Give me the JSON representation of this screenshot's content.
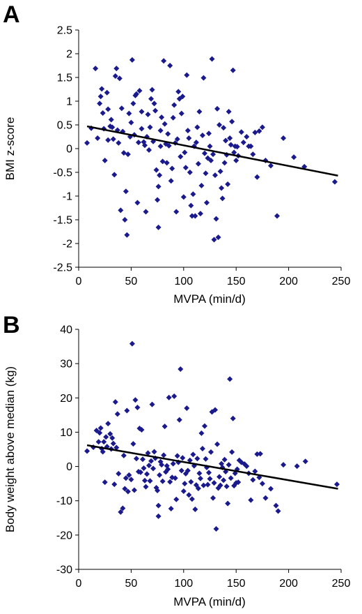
{
  "figure": {
    "colors": {
      "marker": "#1a1a8c",
      "trendline": "#000000",
      "axis": "#000000"
    }
  },
  "chart_data": [
    {
      "type": "scatter",
      "panel_label": "A",
      "xlabel": "MVPA (min/d)",
      "ylabel": "BMI z-score",
      "xlim": [
        0,
        250
      ],
      "ylim": [
        -2.5,
        2.5
      ],
      "xticks": [
        "0",
        "50",
        "100",
        "150",
        "200",
        "250"
      ],
      "yticks": [
        "2.5",
        "2",
        "1.5",
        "1",
        "0.5",
        "0",
        "-0.5",
        "-1",
        "-1.5",
        "-2",
        "-2.5"
      ],
      "marker": "diamond",
      "trendline": {
        "x": [
          8,
          247
        ],
        "y": [
          0.47,
          -0.57
        ]
      },
      "points": [
        [
          8,
          0.12
        ],
        [
          12,
          0.43
        ],
        [
          16,
          1.69
        ],
        [
          18,
          0.22
        ],
        [
          20,
          0.95
        ],
        [
          21,
          1.1
        ],
        [
          22,
          1.26
        ],
        [
          23,
          0.75
        ],
        [
          24,
          0.42
        ],
        [
          25,
          -0.25
        ],
        [
          27,
          1.18
        ],
        [
          28,
          0.83
        ],
        [
          28,
          0.18
        ],
        [
          30,
          0.47
        ],
        [
          31,
          0.61
        ],
        [
          32,
          0.45
        ],
        [
          33,
          0.2
        ],
        [
          34,
          -0.55
        ],
        [
          35,
          1.53
        ],
        [
          36,
          1.69
        ],
        [
          37,
          0.39
        ],
        [
          38,
          0.12
        ],
        [
          39,
          1.48
        ],
        [
          40,
          -1.3
        ],
        [
          41,
          0.85
        ],
        [
          42,
          0.36
        ],
        [
          43,
          -0.09
        ],
        [
          44,
          -1.5
        ],
        [
          45,
          -0.9
        ],
        [
          46,
          -1.82
        ],
        [
          47,
          -0.12
        ],
        [
          48,
          0.74
        ],
        [
          49,
          0.25
        ],
        [
          50,
          0.55
        ],
        [
          51,
          1.87
        ],
        [
          52,
          0.95
        ],
        [
          53,
          0.29
        ],
        [
          54,
          1.12
        ],
        [
          55,
          1.15
        ],
        [
          56,
          -1.14
        ],
        [
          57,
          0.13
        ],
        [
          58,
          1.22
        ],
        [
          60,
          0.78
        ],
        [
          60,
          0.42
        ],
        [
          62,
          0.14
        ],
        [
          63,
          0.07
        ],
        [
          64,
          -1.33
        ],
        [
          65,
          0.25
        ],
        [
          66,
          0.72
        ],
        [
          67,
          -0.03
        ],
        [
          68,
          0.45
        ],
        [
          69,
          1.05
        ],
        [
          70,
          1.24
        ],
        [
          71,
          0.15
        ],
        [
          72,
          0.95
        ],
        [
          73,
          0.8
        ],
        [
          74,
          -0.45
        ],
        [
          75,
          -1.08
        ],
        [
          76,
          -1.66
        ],
        [
          76,
          -0.8
        ],
        [
          77,
          -0.56
        ],
        [
          78,
          0.38
        ],
        [
          78,
          0.05
        ],
        [
          79,
          0.66
        ],
        [
          80,
          -0.27
        ],
        [
          81,
          1.85
        ],
        [
          82,
          0.52
        ],
        [
          83,
          0.1
        ],
        [
          84,
          -0.3
        ],
        [
          85,
          0.31
        ],
        [
          86,
          0.06
        ],
        [
          87,
          1.75
        ],
        [
          88,
          -0.68
        ],
        [
          89,
          -0.42
        ],
        [
          90,
          0.65
        ],
        [
          91,
          0.92
        ],
        [
          92,
          0.12
        ],
        [
          93,
          -1.33
        ],
        [
          94,
          0.2
        ],
        [
          95,
          1.2
        ],
        [
          96,
          1.05
        ],
        [
          97,
          -0.17
        ],
        [
          98,
          0.74
        ],
        [
          99,
          1.1
        ],
        [
          100,
          -1.02
        ],
        [
          101,
          -0.08
        ],
        [
          102,
          -0.4
        ],
        [
          103,
          1.55
        ],
        [
          104,
          0.38
        ],
        [
          105,
          0.22
        ],
        [
          106,
          -0.5
        ],
        [
          107,
          -1.2
        ],
        [
          108,
          -1.42
        ],
        [
          109,
          -0.96
        ],
        [
          110,
          0.05
        ],
        [
          111,
          -1.42
        ],
        [
          112,
          0.13
        ],
        [
          113,
          0.45
        ],
        [
          114,
          -0.32
        ],
        [
          115,
          0.78
        ],
        [
          116,
          -1.37
        ],
        [
          117,
          -0.78
        ],
        [
          118,
          0.28
        ],
        [
          119,
          1.49
        ],
        [
          120,
          -0.1
        ],
        [
          121,
          -0.52
        ],
        [
          122,
          -1.14
        ],
        [
          123,
          -0.2
        ],
        [
          124,
          0.32
        ],
        [
          125,
          0.05
        ],
        [
          126,
          -0.25
        ],
        [
          127,
          1.89
        ],
        [
          128,
          -0.12
        ],
        [
          129,
          -1.92
        ],
        [
          130,
          -0.56
        ],
        [
          131,
          -1.48
        ],
        [
          132,
          0.84
        ],
        [
          133,
          -1.87
        ],
        [
          134,
          0.5
        ],
        [
          135,
          -0.48
        ],
        [
          136,
          -0.83
        ],
        [
          137,
          -1.05
        ],
        [
          138,
          0.44
        ],
        [
          139,
          -0.3
        ],
        [
          140,
          0.17
        ],
        [
          141,
          -0.13
        ],
        [
          142,
          -0.75
        ],
        [
          143,
          0.78
        ],
        [
          144,
          0.22
        ],
        [
          145,
          0.08
        ],
        [
          146,
          0.57
        ],
        [
          147,
          1.65
        ],
        [
          148,
          -0.08
        ],
        [
          149,
          0.05
        ],
        [
          150,
          -0.25
        ],
        [
          151,
          0.04
        ],
        [
          152,
          -0.15
        ],
        [
          155,
          0.35
        ],
        [
          157,
          0.13
        ],
        [
          160,
          0.25
        ],
        [
          162,
          0.05
        ],
        [
          164,
          0.05
        ],
        [
          166,
          -0.12
        ],
        [
          168,
          0.34
        ],
        [
          170,
          -0.6
        ],
        [
          172,
          0.37
        ],
        [
          175,
          0.45
        ],
        [
          178,
          -0.25
        ],
        [
          183,
          -0.36
        ],
        [
          189,
          -1.42
        ],
        [
          195,
          0.22
        ],
        [
          205,
          -0.18
        ],
        [
          215,
          -0.38
        ],
        [
          244,
          -0.7
        ]
      ]
    },
    {
      "type": "scatter",
      "panel_label": "B",
      "xlabel": "MVPA (min/d)",
      "ylabel": "Body weight above median (kg)",
      "xlim": [
        0,
        250
      ],
      "ylim": [
        -30,
        40
      ],
      "xticks": [
        "0",
        "50",
        "100",
        "150",
        "200",
        "250"
      ],
      "yticks": [
        "40",
        "30",
        "20",
        "10",
        "0",
        "-10",
        "-20",
        "-30"
      ],
      "marker": "diamond",
      "trendline": {
        "x": [
          8,
          247
        ],
        "y": [
          6.2,
          -6.5
        ]
      },
      "points": [
        [
          8,
          4.5
        ],
        [
          14,
          5.6
        ],
        [
          17,
          10.5
        ],
        [
          19,
          7.2
        ],
        [
          20,
          9.8
        ],
        [
          21,
          11.2
        ],
        [
          22,
          5.2
        ],
        [
          23,
          4.3
        ],
        [
          24,
          7.2
        ],
        [
          25,
          -4.6
        ],
        [
          26,
          8.6
        ],
        [
          27,
          5.8
        ],
        [
          28,
          12.5
        ],
        [
          30,
          9.5
        ],
        [
          31,
          5.1
        ],
        [
          32,
          8.3
        ],
        [
          33,
          6.7
        ],
        [
          34,
          -5.2
        ],
        [
          35,
          18.8
        ],
        [
          36,
          5.5
        ],
        [
          37,
          15.3
        ],
        [
          38,
          -2.1
        ],
        [
          40,
          -13.3
        ],
        [
          42,
          -12.2
        ],
        [
          43,
          3.2
        ],
        [
          44,
          -6.5
        ],
        [
          45,
          -3.4
        ],
        [
          46,
          16.3
        ],
        [
          47,
          -7.3
        ],
        [
          48,
          -2.5
        ],
        [
          50,
          -3.8
        ],
        [
          51,
          35.8
        ],
        [
          52,
          6.6
        ],
        [
          53,
          -6.9
        ],
        [
          54,
          19.4
        ],
        [
          55,
          2.3
        ],
        [
          56,
          17.2
        ],
        [
          57,
          -1.5
        ],
        [
          58,
          11.1
        ],
        [
          59,
          -1.7
        ],
        [
          60,
          10.7
        ],
        [
          61,
          2.1
        ],
        [
          62,
          -0.5
        ],
        [
          63,
          -4.1
        ],
        [
          64,
          -5.9
        ],
        [
          65,
          -2.2
        ],
        [
          66,
          3.9
        ],
        [
          67,
          0.3
        ],
        [
          68,
          -4.2
        ],
        [
          69,
          1.6
        ],
        [
          70,
          18.1
        ],
        [
          71,
          -0.6
        ],
        [
          72,
          4.3
        ],
        [
          73,
          2.4
        ],
        [
          74,
          -6.2
        ],
        [
          75,
          -7.0
        ],
        [
          76,
          -14.5
        ],
        [
          76,
          -11.4
        ],
        [
          77,
          -2.5
        ],
        [
          78,
          1.4
        ],
        [
          79,
          0.5
        ],
        [
          80,
          -4.3
        ],
        [
          81,
          3.3
        ],
        [
          82,
          11.7
        ],
        [
          83,
          -1.6
        ],
        [
          84,
          0.2
        ],
        [
          85,
          -0.8
        ],
        [
          86,
          20.1
        ],
        [
          87,
          -4.5
        ],
        [
          88,
          -12.3
        ],
        [
          89,
          -3.2
        ],
        [
          90,
          0.8
        ],
        [
          91,
          20.5
        ],
        [
          92,
          -3.4
        ],
        [
          93,
          -9.6
        ],
        [
          94,
          3.1
        ],
        [
          95,
          1.2
        ],
        [
          96,
          13.6
        ],
        [
          97,
          28.4
        ],
        [
          98,
          -1.2
        ],
        [
          99,
          2.5
        ],
        [
          100,
          -7.2
        ],
        [
          101,
          -5.0
        ],
        [
          102,
          -2.1
        ],
        [
          103,
          17.0
        ],
        [
          104,
          -1.2
        ],
        [
          105,
          -8.3
        ],
        [
          106,
          1.8
        ],
        [
          107,
          -4.5
        ],
        [
          108,
          -9.5
        ],
        [
          109,
          3.5
        ],
        [
          110,
          0.2
        ],
        [
          111,
          -12.5
        ],
        [
          112,
          -5.4
        ],
        [
          113,
          2.3
        ],
        [
          114,
          -6.4
        ],
        [
          115,
          -2.0
        ],
        [
          116,
          -3.5
        ],
        [
          117,
          9.7
        ],
        [
          118,
          5.2
        ],
        [
          119,
          -5.5
        ],
        [
          120,
          11.8
        ],
        [
          121,
          2.2
        ],
        [
          122,
          -0.3
        ],
        [
          123,
          -5.3
        ],
        [
          124,
          -1.8
        ],
        [
          125,
          -3.6
        ],
        [
          126,
          4.2
        ],
        [
          127,
          15.9
        ],
        [
          128,
          -9.2
        ],
        [
          129,
          -4.8
        ],
        [
          130,
          16.5
        ],
        [
          131,
          -18.2
        ],
        [
          132,
          6.5
        ],
        [
          133,
          -6.3
        ],
        [
          134,
          -3.0
        ],
        [
          135,
          -5.5
        ],
        [
          136,
          0.8
        ],
        [
          137,
          -0.3
        ],
        [
          138,
          -4.0
        ],
        [
          139,
          2.0
        ],
        [
          140,
          -1.5
        ],
        [
          141,
          -5.8
        ],
        [
          142,
          -10.8
        ],
        [
          143,
          0.5
        ],
        [
          144,
          25.5
        ],
        [
          145,
          -3.4
        ],
        [
          146,
          4.2
        ],
        [
          147,
          14.0
        ],
        [
          148,
          -5.6
        ],
        [
          149,
          -2.0
        ],
        [
          150,
          -4.8
        ],
        [
          151,
          -0.8
        ],
        [
          152,
          -4.6
        ],
        [
          153,
          1.8
        ],
        [
          155,
          1.2
        ],
        [
          158,
          0.7
        ],
        [
          160,
          0.1
        ],
        [
          162,
          -2.0
        ],
        [
          164,
          -9.8
        ],
        [
          166,
          -3.9
        ],
        [
          168,
          -1.4
        ],
        [
          170,
          3.6
        ],
        [
          172,
          -3.2
        ],
        [
          173,
          3.7
        ],
        [
          175,
          -5.0
        ],
        [
          178,
          -9.2
        ],
        [
          183,
          -6.5
        ],
        [
          188,
          -11.4
        ],
        [
          190,
          -13.0
        ],
        [
          195,
          0.5
        ],
        [
          208,
          0.1
        ],
        [
          216,
          1.5
        ],
        [
          246,
          -5.2
        ]
      ]
    }
  ]
}
